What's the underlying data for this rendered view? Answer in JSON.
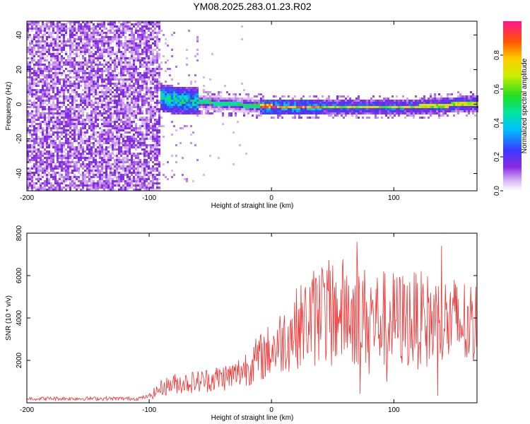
{
  "title": "YM08.2025.283.01.23.R02",
  "chart_data": [
    {
      "type": "heatmap",
      "xlabel": "Height of straight line (km)",
      "ylabel": "Frequency (Hz)",
      "xlim": [
        -200,
        168
      ],
      "ylim": [
        -50,
        48
      ],
      "xticks": [
        -200,
        -100,
        0,
        100
      ],
      "xtick_labels": [
        "-200",
        "-100",
        "0",
        "100"
      ],
      "yticks": [
        -40,
        -20,
        0,
        20,
        40
      ],
      "ytick_labels": [
        "-40",
        "-20",
        "0",
        "20",
        "40"
      ],
      "noise_region_end_km": -92,
      "signal_track": {
        "description_points_km": [
          -100,
          -80,
          -60,
          -40,
          -20,
          0,
          20,
          40,
          60,
          80,
          100,
          120,
          140,
          160,
          168
        ],
        "frequency_hz": [
          6,
          3,
          2,
          1,
          0,
          -1,
          -1,
          -1,
          -1,
          -1,
          -1,
          -1,
          0,
          1,
          1
        ]
      },
      "colorbar": {
        "label": "Normalized spectral amplitude",
        "range": [
          0,
          1
        ],
        "ticks": [
          0.0,
          0.2,
          0.4,
          0.6,
          0.8
        ],
        "tick_labels": [
          "0.0",
          "0.2",
          "0.4",
          "0.6",
          "0.8"
        ]
      }
    },
    {
      "type": "line",
      "xlabel": "Height of straight line (km)",
      "ylabel": "SNR (10 * v/v)",
      "xlim": [
        -200,
        168
      ],
      "ylim": [
        0,
        8000
      ],
      "xticks": [
        -200,
        -100,
        0,
        100
      ],
      "xtick_labels": [
        "-200",
        "-100",
        "0",
        "100"
      ],
      "yticks": [
        2000,
        4000,
        6000,
        8000
      ],
      "ytick_labels": [
        "2000",
        "4000",
        "6000",
        "8000"
      ],
      "series": [
        {
          "name": "SNR",
          "color": "#ee3333",
          "x": [
            -200,
            -150,
            -110,
            -100,
            -90,
            -80,
            -60,
            -40,
            -30,
            -20,
            -10,
            0,
            10,
            20,
            30,
            40,
            60,
            80,
            100,
            120,
            140,
            160,
            168
          ],
          "y": [
            200,
            200,
            200,
            300,
            700,
            900,
            1000,
            1200,
            1300,
            1700,
            2100,
            2500,
            3000,
            3500,
            3900,
            4200,
            4300,
            4000,
            3900,
            3900,
            3800,
            3700,
            3600
          ]
        }
      ]
    }
  ]
}
